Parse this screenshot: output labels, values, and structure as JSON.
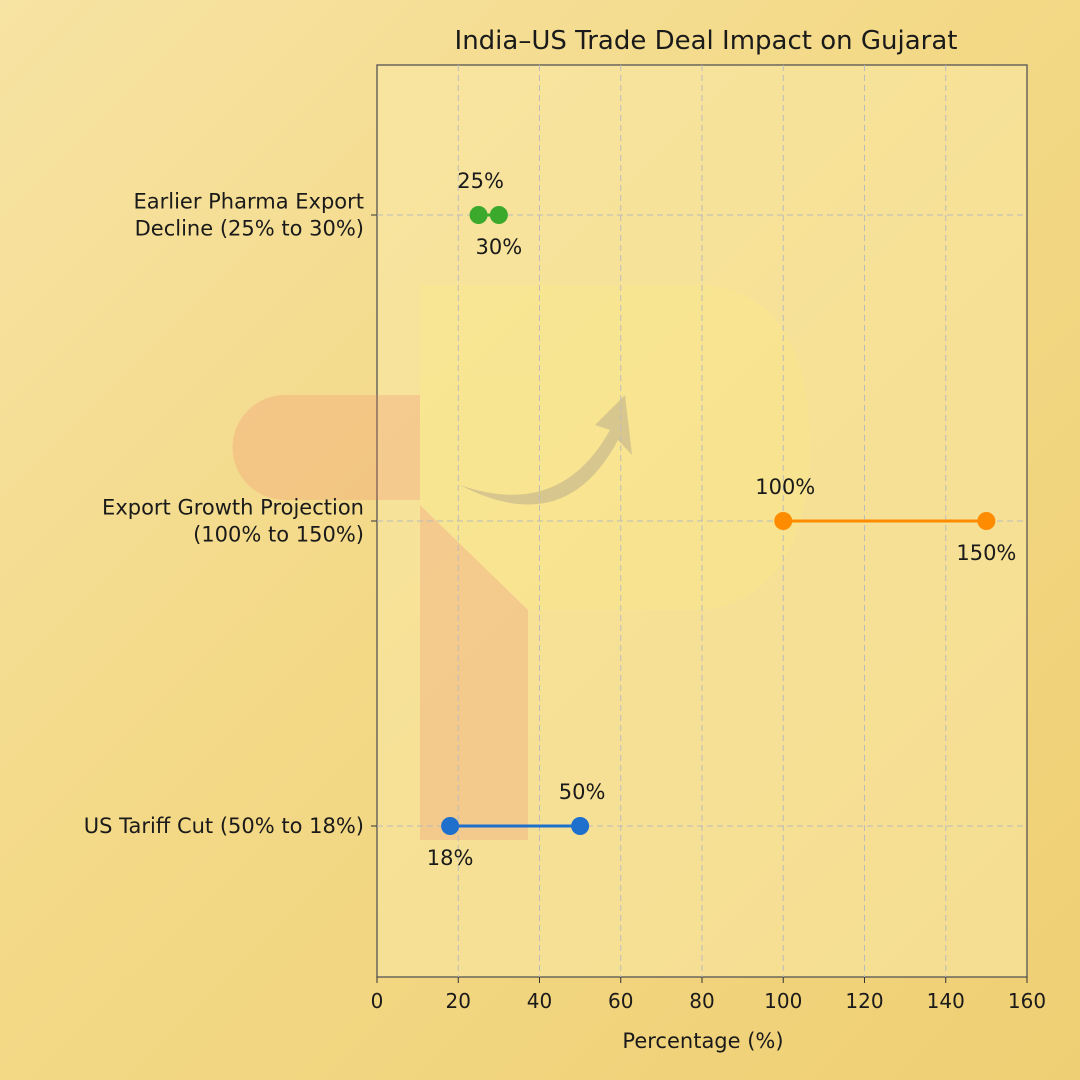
{
  "chart_data": {
    "type": "dumbbell",
    "title": "India–US Trade Deal Impact on Gujarat",
    "xlabel": "Percentage (%)",
    "ylabel": "",
    "xlim": [
      0,
      160
    ],
    "xticks": [
      0,
      20,
      40,
      60,
      80,
      100,
      120,
      140,
      160
    ],
    "grid": true,
    "categories": [
      [
        "Earlier Pharma Export",
        "Decline (25% to 30%)"
      ],
      [
        "Export Growth Projection",
        "(100% to 150%)"
      ],
      [
        "US Tariff Cut (50% to 18%)"
      ]
    ],
    "series": [
      {
        "start": 25,
        "end": 30,
        "start_label": "25%",
        "end_label": "30%",
        "color": "#3aa92c"
      },
      {
        "start": 100,
        "end": 150,
        "start_label": "100%",
        "end_label": "150%",
        "color": "#ff8c00"
      },
      {
        "start": 50,
        "end": 18,
        "start_label": "50%",
        "end_label": "18%",
        "color": "#1f6fcc"
      }
    ]
  }
}
